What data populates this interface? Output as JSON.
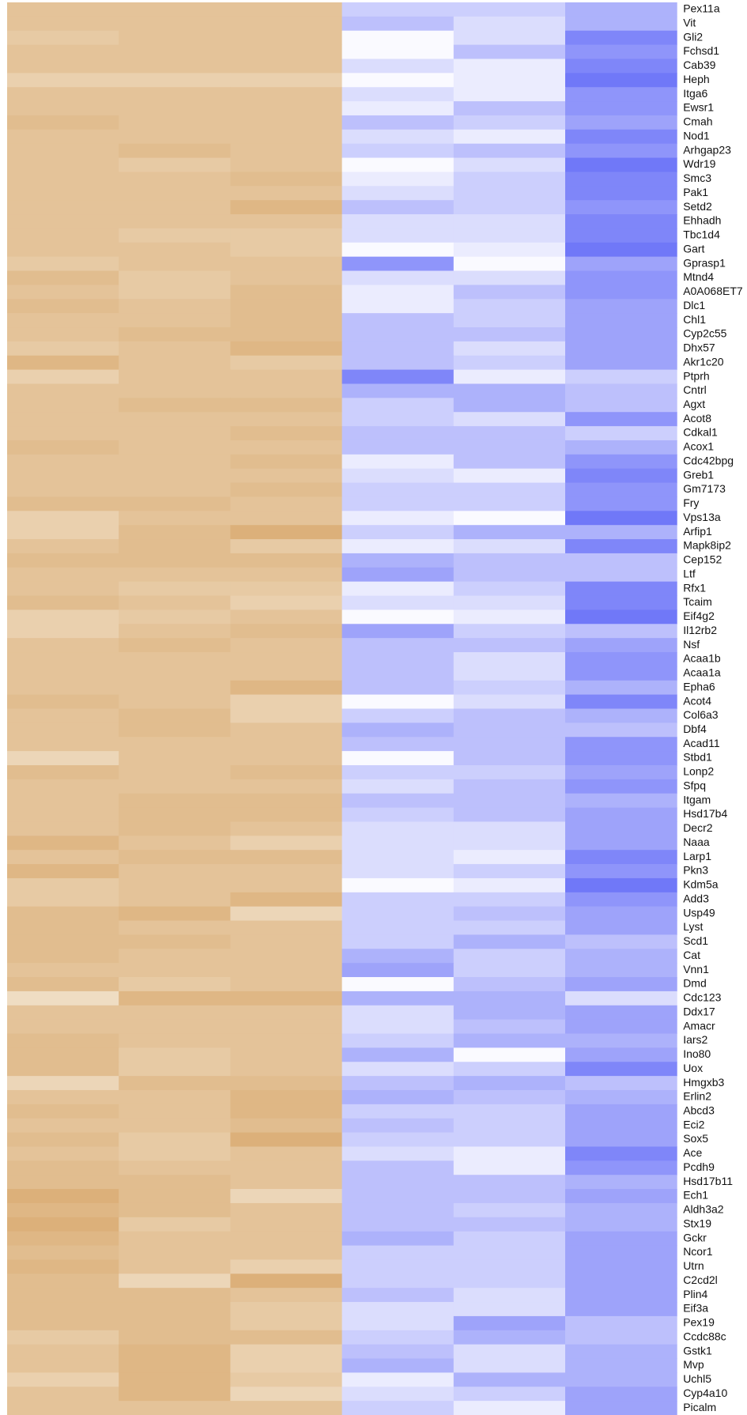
{
  "chart_data": {
    "type": "heatmap",
    "categories": [
      "Pex11a",
      "Vit",
      "Gli2",
      "Fchsd1",
      "Cab39",
      "Heph",
      "Itga6",
      "Ewsr1",
      "Cmah",
      "Nod1",
      "Arhgap23",
      "Wdr19",
      "Smc3",
      "Pak1",
      "Setd2",
      "Ehhadh",
      "Tbc1d4",
      "Gart",
      "Gprasp1",
      "Mtnd4",
      "A0A068ET7",
      "Dlc1",
      "Chl1",
      "Cyp2c55",
      "Dhx57",
      "Akr1c20",
      "Ptprh",
      "Cntrl",
      "Agxt",
      "Acot8",
      "Cdkal1",
      "Acox1",
      "Cdc42bpg",
      "Greb1",
      "Gm7173",
      "Fry",
      "Vps13a",
      "Arfip1",
      "Mapk8ip2",
      "Cep152",
      "Ltf",
      "Rfx1",
      "Tcaim",
      "Eif4g2",
      "Il12rb2",
      "Nsf",
      "Acaa1b",
      "Acaa1a",
      "Epha6",
      "Acot4",
      "Col6a3",
      "Dbf4",
      "Acad11",
      "Stbd1",
      "Lonp2",
      "Sfpq",
      "Itgam",
      "Hsd17b4",
      "Decr2",
      "Naaa",
      "Larp1",
      "Pkn3",
      "Kdm5a",
      "Add3",
      "Usp49",
      "Lyst",
      "Scd1",
      "Cat",
      "Vnn1",
      "Dmd",
      "Cdc123",
      "Ddx17",
      "Amacr",
      "Iars2",
      "Ino80",
      "Uox",
      "Hmgxb3",
      "Erlin2",
      "Abcd3",
      "Eci2",
      "Sox5",
      "Ace",
      "Pcdh9",
      "Hsd17b11",
      "Ech1",
      "Aldh3a2",
      "Stx19",
      "Gckr",
      "Ncor1",
      "Utrn",
      "C2cd2l",
      "Plin4",
      "Eif3a",
      "Pex19",
      "Ccdc88c",
      "Gstk1",
      "Mvp",
      "Uchl5",
      "Cyp4a10",
      "Picalm"
    ],
    "vlim": [
      0,
      9
    ],
    "palettes": [
      {
        "low": "#f2e3cd",
        "high": "#d9aa70"
      },
      {
        "low": "#fafaff",
        "high": "#7078f8"
      }
    ],
    "column_palette": [
      0,
      0,
      0,
      1,
      1,
      1
    ],
    "values": [
      [
        5,
        5,
        5,
        3,
        3,
        5
      ],
      [
        5,
        5,
        5,
        4,
        2,
        5
      ],
      [
        4,
        5,
        5,
        0,
        2,
        8
      ],
      [
        5,
        5,
        5,
        0,
        4,
        7
      ],
      [
        5,
        5,
        5,
        2,
        1,
        8
      ],
      [
        3,
        3,
        3,
        0,
        1,
        9
      ],
      [
        5,
        5,
        5,
        2,
        1,
        7
      ],
      [
        5,
        5,
        5,
        1,
        4,
        7
      ],
      [
        6,
        5,
        5,
        4,
        3,
        6
      ],
      [
        5,
        5,
        5,
        2,
        1,
        8
      ],
      [
        5,
        6,
        5,
        3,
        4,
        7
      ],
      [
        5,
        4,
        5,
        0,
        2,
        9
      ],
      [
        5,
        5,
        6,
        1,
        3,
        8
      ],
      [
        5,
        5,
        5,
        2,
        3,
        8
      ],
      [
        5,
        5,
        7,
        4,
        3,
        7
      ],
      [
        5,
        5,
        5,
        2,
        2,
        8
      ],
      [
        5,
        4,
        4,
        2,
        2,
        8
      ],
      [
        5,
        5,
        4,
        0,
        1,
        9
      ],
      [
        4,
        5,
        5,
        7,
        0,
        6
      ],
      [
        6,
        4,
        5,
        2,
        2,
        7
      ],
      [
        5,
        4,
        6,
        1,
        4,
        7
      ],
      [
        6,
        5,
        6,
        1,
        3,
        6
      ],
      [
        5,
        5,
        6,
        4,
        3,
        6
      ],
      [
        5,
        6,
        6,
        4,
        4,
        6
      ],
      [
        4,
        5,
        7,
        4,
        2,
        6
      ],
      [
        7,
        5,
        4,
        4,
        3,
        6
      ],
      [
        3,
        5,
        5,
        8,
        1,
        3
      ],
      [
        5,
        5,
        5,
        5,
        5,
        4
      ],
      [
        5,
        6,
        6,
        3,
        5,
        4
      ],
      [
        5,
        5,
        5,
        3,
        2,
        7
      ],
      [
        5,
        5,
        6,
        4,
        4,
        3
      ],
      [
        6,
        5,
        5,
        4,
        4,
        5
      ],
      [
        5,
        5,
        6,
        1,
        4,
        7
      ],
      [
        5,
        5,
        5,
        2,
        1,
        8
      ],
      [
        5,
        5,
        6,
        3,
        3,
        7
      ],
      [
        6,
        6,
        5,
        3,
        3,
        7
      ],
      [
        3,
        5,
        5,
        1,
        0,
        9
      ],
      [
        3,
        6,
        8,
        3,
        5,
        5
      ],
      [
        5,
        6,
        4,
        1,
        2,
        8
      ],
      [
        6,
        6,
        6,
        5,
        4,
        4
      ],
      [
        5,
        5,
        5,
        6,
        4,
        4
      ],
      [
        5,
        4,
        4,
        1,
        3,
        8
      ],
      [
        6,
        5,
        3,
        2,
        2,
        8
      ],
      [
        3,
        4,
        5,
        0,
        1,
        9
      ],
      [
        3,
        5,
        6,
        6,
        3,
        4
      ],
      [
        5,
        6,
        5,
        4,
        4,
        6
      ],
      [
        5,
        5,
        5,
        4,
        2,
        7
      ],
      [
        5,
        5,
        5,
        4,
        2,
        7
      ],
      [
        5,
        5,
        7,
        4,
        3,
        5
      ],
      [
        6,
        5,
        3,
        0,
        2,
        8
      ],
      [
        5,
        6,
        3,
        3,
        4,
        5
      ],
      [
        5,
        6,
        5,
        5,
        4,
        4
      ],
      [
        5,
        5,
        5,
        4,
        4,
        7
      ],
      [
        2,
        5,
        5,
        0,
        4,
        7
      ],
      [
        6,
        5,
        6,
        3,
        3,
        6
      ],
      [
        5,
        5,
        5,
        2,
        4,
        7
      ],
      [
        5,
        6,
        6,
        4,
        4,
        5
      ],
      [
        5,
        6,
        6,
        3,
        4,
        6
      ],
      [
        5,
        6,
        5,
        2,
        2,
        6
      ],
      [
        7,
        5,
        3,
        2,
        2,
        6
      ],
      [
        5,
        6,
        6,
        2,
        1,
        8
      ],
      [
        7,
        5,
        5,
        2,
        3,
        7
      ],
      [
        4,
        5,
        5,
        0,
        1,
        9
      ],
      [
        4,
        5,
        7,
        3,
        3,
        7
      ],
      [
        6,
        7,
        2,
        3,
        4,
        6
      ],
      [
        6,
        5,
        5,
        3,
        3,
        6
      ],
      [
        6,
        6,
        5,
        3,
        5,
        4
      ],
      [
        6,
        5,
        5,
        5,
        3,
        5
      ],
      [
        5,
        5,
        5,
        6,
        3,
        5
      ],
      [
        6,
        4,
        5,
        0,
        4,
        6
      ],
      [
        1,
        7,
        7,
        5,
        5,
        2
      ],
      [
        5,
        5,
        5,
        2,
        5,
        6
      ],
      [
        5,
        5,
        5,
        2,
        4,
        6
      ],
      [
        6,
        5,
        5,
        3,
        5,
        5
      ],
      [
        6,
        4,
        5,
        5,
        0,
        6
      ],
      [
        6,
        4,
        5,
        2,
        3,
        8
      ],
      [
        2,
        6,
        6,
        4,
        5,
        4
      ],
      [
        5,
        5,
        7,
        5,
        4,
        5
      ],
      [
        6,
        5,
        7,
        3,
        3,
        6
      ],
      [
        5,
        5,
        6,
        4,
        3,
        6
      ],
      [
        6,
        4,
        8,
        3,
        3,
        6
      ],
      [
        5,
        4,
        5,
        2,
        1,
        8
      ],
      [
        6,
        5,
        5,
        4,
        1,
        7
      ],
      [
        6,
        6,
        5,
        4,
        4,
        5
      ],
      [
        8,
        6,
        2,
        4,
        4,
        6
      ],
      [
        7,
        6,
        5,
        4,
        3,
        5
      ],
      [
        8,
        4,
        5,
        4,
        4,
        5
      ],
      [
        7,
        5,
        5,
        5,
        3,
        6
      ],
      [
        6,
        5,
        5,
        3,
        3,
        6
      ],
      [
        7,
        5,
        3,
        3,
        3,
        6
      ],
      [
        6,
        2,
        8,
        3,
        3,
        6
      ],
      [
        6,
        6,
        5,
        4,
        2,
        6
      ],
      [
        6,
        6,
        4,
        2,
        2,
        6
      ],
      [
        6,
        6,
        4,
        2,
        6,
        4
      ],
      [
        4,
        6,
        6,
        3,
        5,
        4
      ],
      [
        5,
        7,
        3,
        4,
        2,
        5
      ],
      [
        5,
        7,
        3,
        5,
        2,
        5
      ],
      [
        3,
        7,
        4,
        1,
        5,
        5
      ],
      [
        5,
        7,
        2,
        2,
        3,
        6
      ],
      [
        5,
        5,
        5,
        3,
        1,
        6
      ]
    ]
  }
}
